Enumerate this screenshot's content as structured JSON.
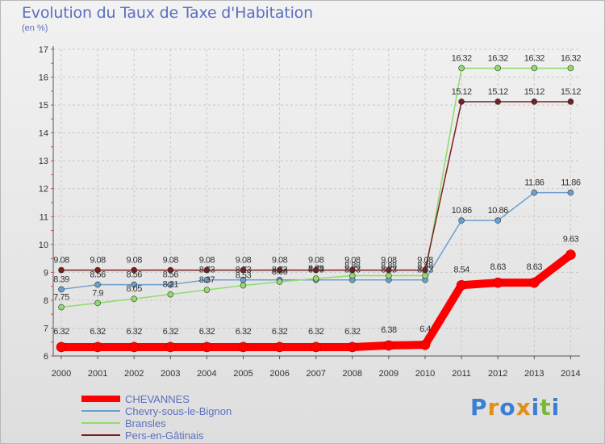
{
  "title": "Evolution du Taux de Taxe d'Habitation",
  "unit_label": "(en %)",
  "logo": {
    "text": "Proxiti",
    "colors": [
      "#3a7fd0",
      "#e0901a",
      "#3a7fd0",
      "#e0901a",
      "#3a7fd0",
      "#7ab83a",
      "#3a7fd0"
    ]
  },
  "chart_data": {
    "type": "line",
    "title": "Evolution du Taux de Taxe d'Habitation",
    "ylabel": "(en %)",
    "xlabel": "",
    "ylim": [
      6,
      17
    ],
    "y_ticks": [
      "6",
      "7",
      "8",
      "9",
      "10",
      "11",
      "12",
      "13",
      "14",
      "15",
      "16",
      "17"
    ],
    "categories": [
      "2000",
      "2001",
      "2002",
      "2003",
      "2004",
      "2005",
      "2006",
      "2007",
      "2008",
      "2009",
      "2010",
      "2011",
      "2012",
      "2013",
      "2014"
    ],
    "legend_position": "bottom-left",
    "series": [
      {
        "name": "CHEVANNES",
        "color": "#ff0000",
        "emphasis": true,
        "values": [
          6.32,
          6.32,
          6.32,
          6.32,
          6.32,
          6.32,
          6.32,
          6.32,
          6.32,
          6.38,
          6.4,
          8.54,
          8.63,
          8.63,
          9.63
        ],
        "labels": [
          "6.32",
          "6.32",
          "6.32",
          "6.32",
          "6.32",
          "6.32",
          "6.32",
          "6.32",
          "6.32",
          "6.38",
          "6.4",
          "8.54",
          "8.63",
          "8.63",
          "9.63"
        ]
      },
      {
        "name": "Chevry-sous-le-Bignon",
        "color": "#6a9fd0",
        "values": [
          8.39,
          8.56,
          8.56,
          8.56,
          8.73,
          8.73,
          8.73,
          8.73,
          8.73,
          8.73,
          8.73,
          10.86,
          10.86,
          11.86,
          11.86
        ],
        "labels": [
          "8.39",
          "8.56",
          "8.56",
          "8.56",
          "8.73",
          "8.73",
          "8.73",
          "8.73",
          "8.73",
          "8.73",
          "8.73",
          "10.86",
          "10.86",
          "11.86",
          "11.86"
        ]
      },
      {
        "name": "Bransles",
        "color": "#8fdc6a",
        "values": [
          7.75,
          7.9,
          8.05,
          8.21,
          8.37,
          8.53,
          8.66,
          8.78,
          8.88,
          8.88,
          8.88,
          16.32,
          16.32,
          16.32,
          16.32
        ],
        "labels": [
          "7.75",
          "7.9",
          "8.05",
          "8.21",
          "8.37",
          "8.53",
          "8.66",
          "8.78",
          "8.88",
          "8.88",
          "8.88",
          "16.32",
          "16.32",
          "16.32",
          "16.32"
        ]
      },
      {
        "name": "Pers-en-Gâtinais",
        "color": "#7a1f1f",
        "values": [
          9.08,
          9.08,
          9.08,
          9.08,
          9.08,
          9.08,
          9.08,
          9.08,
          9.08,
          9.08,
          9.08,
          15.12,
          15.12,
          15.12,
          15.12
        ],
        "labels": [
          "9.08",
          "9.08",
          "9.08",
          "9.08",
          "9.08",
          "9.08",
          "9.08",
          "9.08",
          "9.08",
          "9.08",
          "9.08",
          "15.12",
          "15.12",
          "15.12",
          "15.12"
        ]
      }
    ]
  }
}
